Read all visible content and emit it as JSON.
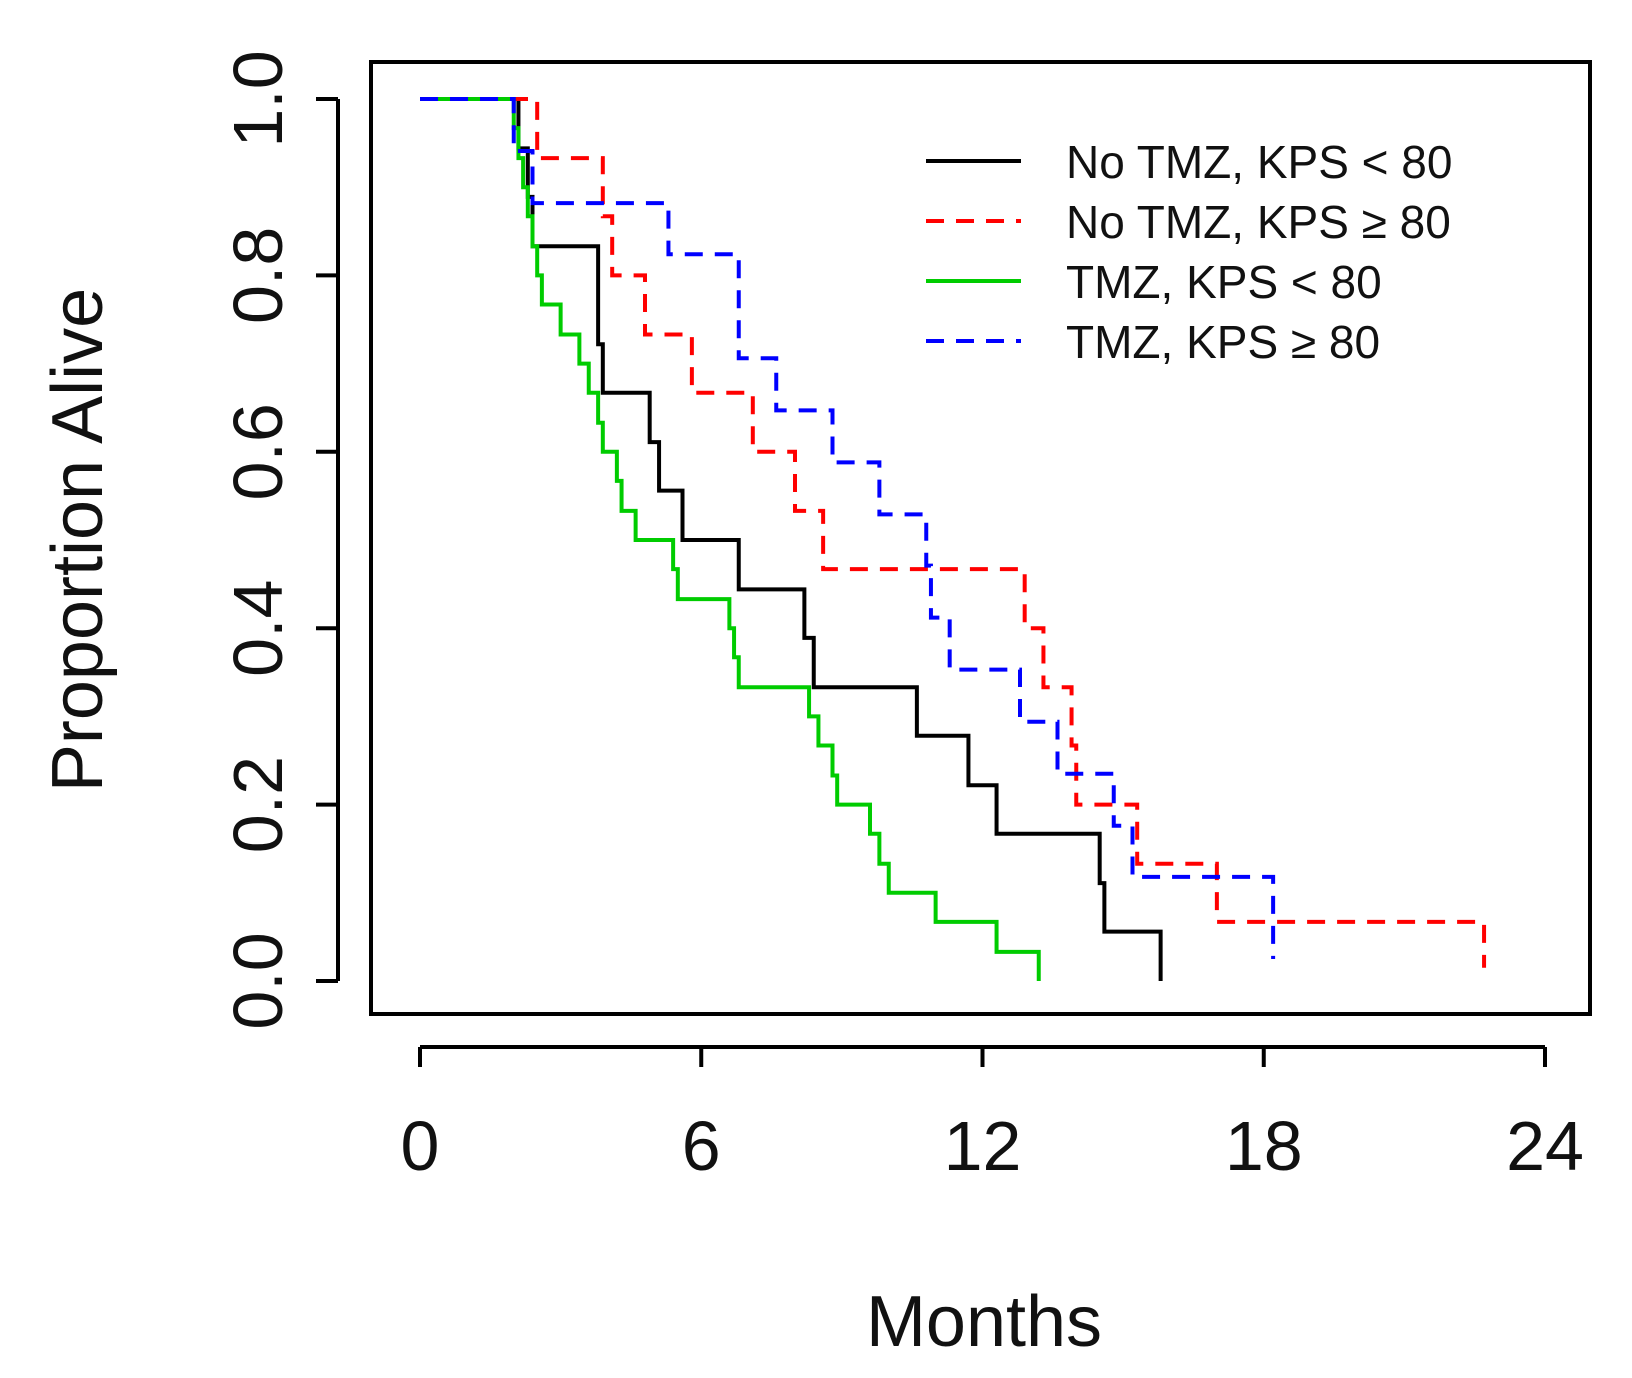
{
  "chart_data": {
    "type": "line",
    "subtype": "kaplan-meier step curves",
    "title": "",
    "xlabel": "Months",
    "ylabel": "Proportion Alive",
    "xlim": [
      0,
      24
    ],
    "ylim": [
      0,
      1
    ],
    "x_ticks": [
      0,
      6,
      12,
      18,
      24
    ],
    "x_tick_labels": [
      "0",
      "6",
      "12",
      "18",
      "24"
    ],
    "y_ticks": [
      0,
      0.2,
      0.4,
      0.6,
      0.8,
      1.0
    ],
    "y_tick_labels": [
      "0.0",
      "0.2",
      "0.4",
      "0.6",
      "0.8",
      "1.0"
    ],
    "grid": false,
    "legend_position": "top-right",
    "series": [
      {
        "name": "No TMZ, KPS < 80",
        "label_prefix": "No TMZ, KPS ",
        "label_symbol": "<",
        "label_suffix": " 80",
        "color": "#000000",
        "dashed": false,
        "steps": [
          [
            0,
            1.0
          ],
          [
            2.1,
            0.944
          ],
          [
            2.3,
            0.889
          ],
          [
            2.4,
            0.833
          ],
          [
            3.8,
            0.722
          ],
          [
            3.9,
            0.667
          ],
          [
            4.9,
            0.611
          ],
          [
            5.1,
            0.556
          ],
          [
            5.6,
            0.5
          ],
          [
            6.8,
            0.444
          ],
          [
            8.2,
            0.389
          ],
          [
            8.4,
            0.333
          ],
          [
            10.6,
            0.278
          ],
          [
            11.7,
            0.222
          ],
          [
            12.3,
            0.167
          ],
          [
            14.5,
            0.111
          ],
          [
            14.6,
            0.056
          ],
          [
            15.8,
            0.0
          ]
        ],
        "end": 15.8
      },
      {
        "name": "No TMZ, KPS ≥ 80",
        "label_prefix": "No TMZ, KPS ",
        "label_symbol": "≥",
        "label_suffix": " 80",
        "color": "#ff0000",
        "dashed": true,
        "steps": [
          [
            0,
            1.0
          ],
          [
            2.5,
            0.933
          ],
          [
            3.9,
            0.867
          ],
          [
            4.1,
            0.8
          ],
          [
            4.8,
            0.733
          ],
          [
            5.8,
            0.667
          ],
          [
            7.1,
            0.6
          ],
          [
            8.0,
            0.533
          ],
          [
            8.6,
            0.467
          ],
          [
            12.9,
            0.4
          ],
          [
            13.3,
            0.333
          ],
          [
            13.9,
            0.267
          ],
          [
            14.0,
            0.2
          ],
          [
            15.3,
            0.133
          ],
          [
            17.0,
            0.067
          ],
          [
            22.7,
            0.015
          ]
        ],
        "end": 22.7
      },
      {
        "name": "TMZ, KPS < 80",
        "label_prefix": "TMZ, KPS ",
        "label_symbol": "<",
        "label_suffix": " 80",
        "color": "#00cc00",
        "dashed": false,
        "steps": [
          [
            0,
            1.0
          ],
          [
            2.0,
            0.967
          ],
          [
            2.1,
            0.933
          ],
          [
            2.2,
            0.9
          ],
          [
            2.3,
            0.867
          ],
          [
            2.4,
            0.833
          ],
          [
            2.5,
            0.8
          ],
          [
            2.6,
            0.767
          ],
          [
            3.0,
            0.733
          ],
          [
            3.4,
            0.7
          ],
          [
            3.6,
            0.667
          ],
          [
            3.8,
            0.633
          ],
          [
            3.9,
            0.6
          ],
          [
            4.2,
            0.567
          ],
          [
            4.3,
            0.533
          ],
          [
            4.6,
            0.5
          ],
          [
            5.4,
            0.467
          ],
          [
            5.5,
            0.433
          ],
          [
            6.6,
            0.4
          ],
          [
            6.7,
            0.367
          ],
          [
            6.8,
            0.333
          ],
          [
            8.3,
            0.3
          ],
          [
            8.5,
            0.267
          ],
          [
            8.8,
            0.233
          ],
          [
            8.9,
            0.2
          ],
          [
            9.6,
            0.167
          ],
          [
            9.8,
            0.133
          ],
          [
            10.0,
            0.1
          ],
          [
            11.0,
            0.067
          ],
          [
            12.3,
            0.033
          ],
          [
            13.2,
            0.0
          ]
        ],
        "end": 13.2
      },
      {
        "name": "TMZ, KPS ≥ 80",
        "label_prefix": "TMZ, KPS ",
        "label_symbol": "≥",
        "label_suffix": " 80",
        "color": "#0000ff",
        "dashed": true,
        "steps": [
          [
            0,
            1.0
          ],
          [
            2.0,
            0.941
          ],
          [
            2.4,
            0.882
          ],
          [
            5.3,
            0.824
          ],
          [
            6.8,
            0.706
          ],
          [
            7.6,
            0.647
          ],
          [
            8.8,
            0.588
          ],
          [
            9.8,
            0.529
          ],
          [
            10.8,
            0.471
          ],
          [
            10.9,
            0.412
          ],
          [
            11.3,
            0.353
          ],
          [
            12.8,
            0.294
          ],
          [
            13.6,
            0.235
          ],
          [
            14.8,
            0.176
          ],
          [
            15.2,
            0.118
          ],
          [
            18.2,
            0.025
          ]
        ],
        "end": 18.2
      }
    ]
  }
}
